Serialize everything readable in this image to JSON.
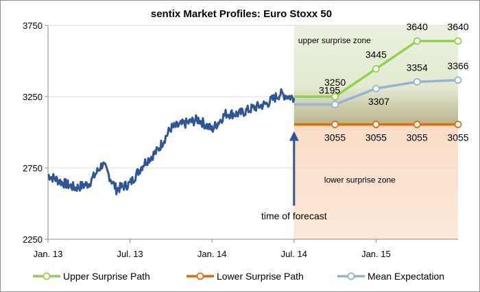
{
  "chart_data": {
    "type": "line",
    "title": "sentix Market Profiles: Euro Stoxx 50",
    "xlabel": "",
    "ylabel": "",
    "ylim": [
      2250,
      3750
    ],
    "yticks": [
      2250,
      2750,
      3250,
      3750
    ],
    "ytick_labels": [
      "2250",
      "2750",
      "3250",
      "3750"
    ],
    "xlim": [
      "2013-01",
      "2015-07"
    ],
    "xticks": [
      "2013-01",
      "2013-07",
      "2014-01",
      "2014-07",
      "2015-01"
    ],
    "xtick_labels": [
      "Jan. 13",
      "Jul. 13",
      "Jan. 14",
      "Jul. 14",
      "Jan. 15"
    ],
    "grid": "horizontal",
    "legend_position": "bottom",
    "annotations": {
      "upper_zone": "upper surprise zone",
      "lower_zone": "lower surprise zone",
      "forecast_marker": "time of forecast",
      "forecast_date": "2014-07"
    },
    "history": {
      "color": "#2e5597",
      "dates": [
        "2013-01",
        "2013-02",
        "2013-03",
        "2013-04",
        "2013-05",
        "2013-06",
        "2013-07",
        "2013-08",
        "2013-09",
        "2013-10",
        "2013-11",
        "2013-12",
        "2014-01",
        "2014-02",
        "2014-03",
        "2014-04",
        "2014-05",
        "2014-06",
        "2014-07"
      ],
      "values": [
        2700,
        2650,
        2610,
        2640,
        2780,
        2600,
        2640,
        2780,
        2870,
        3030,
        3060,
        3090,
        3020,
        3130,
        3130,
        3170,
        3200,
        3270,
        3240
      ]
    },
    "series": [
      {
        "name": "Upper Surprise Path",
        "color": "#92d050",
        "x": [
          "2014-07",
          "2014-10",
          "2015-01",
          "2015-04",
          "2015-07"
        ],
        "values": [
          3250,
          3250,
          3445,
          3640,
          3640
        ],
        "labels": [
          "",
          "3250",
          "3445",
          "3640",
          "3640"
        ]
      },
      {
        "name": "Lower Surprise Path",
        "color": "#e36c09",
        "x": [
          "2014-07",
          "2014-10",
          "2015-01",
          "2015-04",
          "2015-07"
        ],
        "values": [
          3055,
          3055,
          3055,
          3055,
          3055
        ],
        "labels": [
          "",
          "3055",
          "3055",
          "3055",
          "3055"
        ]
      },
      {
        "name": "Mean Expectation",
        "color": "#95b3d7",
        "x": [
          "2014-07",
          "2014-10",
          "2015-01",
          "2015-04",
          "2015-07"
        ],
        "values": [
          3195,
          3195,
          3307,
          3354,
          3366
        ],
        "labels": [
          "",
          "3195",
          "3307",
          "3354",
          "3366"
        ]
      }
    ]
  }
}
